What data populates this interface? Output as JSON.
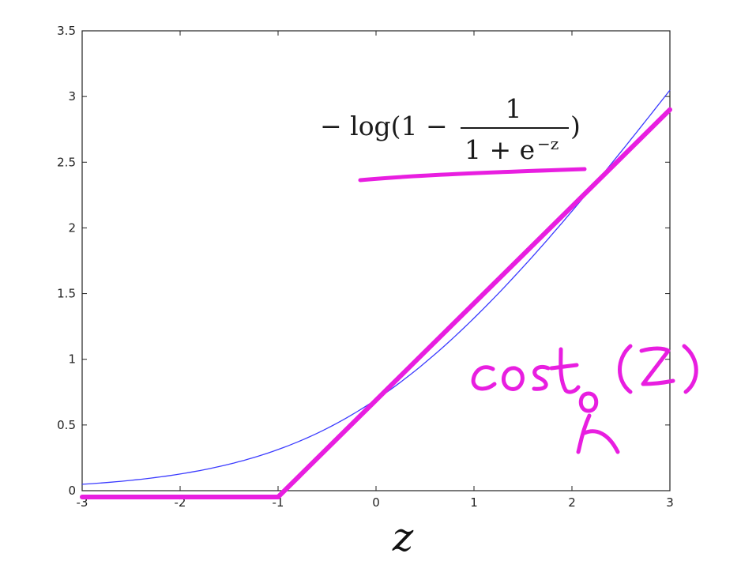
{
  "chart_data": {
    "type": "line",
    "xlabel": "z",
    "ylabel": "",
    "title": "",
    "xlim": [
      -3,
      3
    ],
    "ylim": [
      0,
      3.5
    ],
    "x_ticks": [
      "-3",
      "-2",
      "-1",
      "0",
      "1",
      "2",
      "3"
    ],
    "y_ticks": [
      "0",
      "0.5",
      "1",
      "1.5",
      "2",
      "2.5",
      "3",
      "3.5"
    ],
    "grid": false,
    "series": [
      {
        "function": "-log(1 - 1/(1+e^(-z)))",
        "color": "#3b3bff",
        "x": [
          -3,
          -2.5,
          -2,
          -1.5,
          -1,
          -0.5,
          0,
          0.5,
          1,
          1.5,
          2,
          2.5,
          3
        ],
        "y": [
          0.0486,
          0.0789,
          0.1269,
          0.2014,
          0.3133,
          0.4741,
          0.6931,
          0.9741,
          1.3133,
          1.7014,
          2.1269,
          2.5789,
          3.0486
        ]
      },
      {
        "color": "#e81ee0",
        "x": [
          -3,
          -1,
          3
        ],
        "y": [
          0,
          0,
          2.9
        ]
      }
    ],
    "annotations": {
      "formula": {
        "prefix": "− log(1 −",
        "numerator": "1",
        "denominator_base": "1 + e",
        "denominator_exp": "−z",
        "suffix": ")"
      },
      "handwritten_label": {
        "text": "cost",
        "subscript": "0",
        "argument": "(z)"
      }
    }
  }
}
